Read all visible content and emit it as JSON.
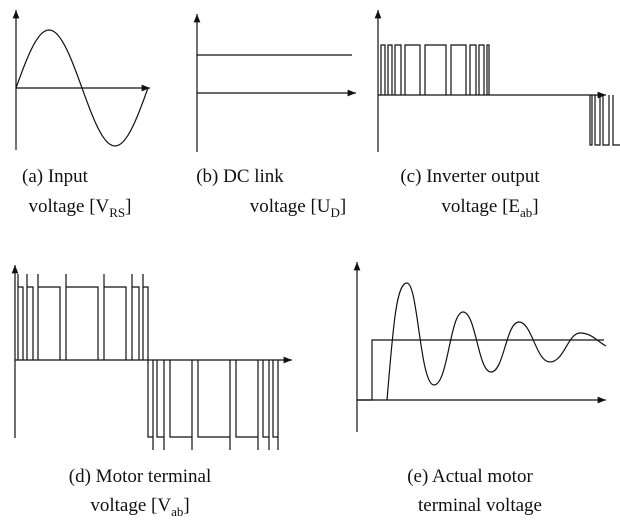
{
  "panels": [
    {
      "line1": "(a) Input",
      "line2": {
        "pre": "voltage [V",
        "sub": "RS",
        "post": "]"
      }
    },
    {
      "line1": "(b) DC link",
      "line2": {
        "pre": "voltage [U",
        "sub": "D",
        "post": "]"
      }
    },
    {
      "line1": "(c) Inverter output",
      "line2": {
        "pre": "voltage [E",
        "sub": "ab",
        "post": "]"
      }
    },
    {
      "line1": "(d) Motor terminal",
      "line2": {
        "pre": "voltage [V",
        "sub": "ab",
        "post": "]"
      }
    },
    {
      "line1": "(e) Actual motor",
      "line2": {
        "pre": "terminal voltage"
      }
    }
  ]
}
